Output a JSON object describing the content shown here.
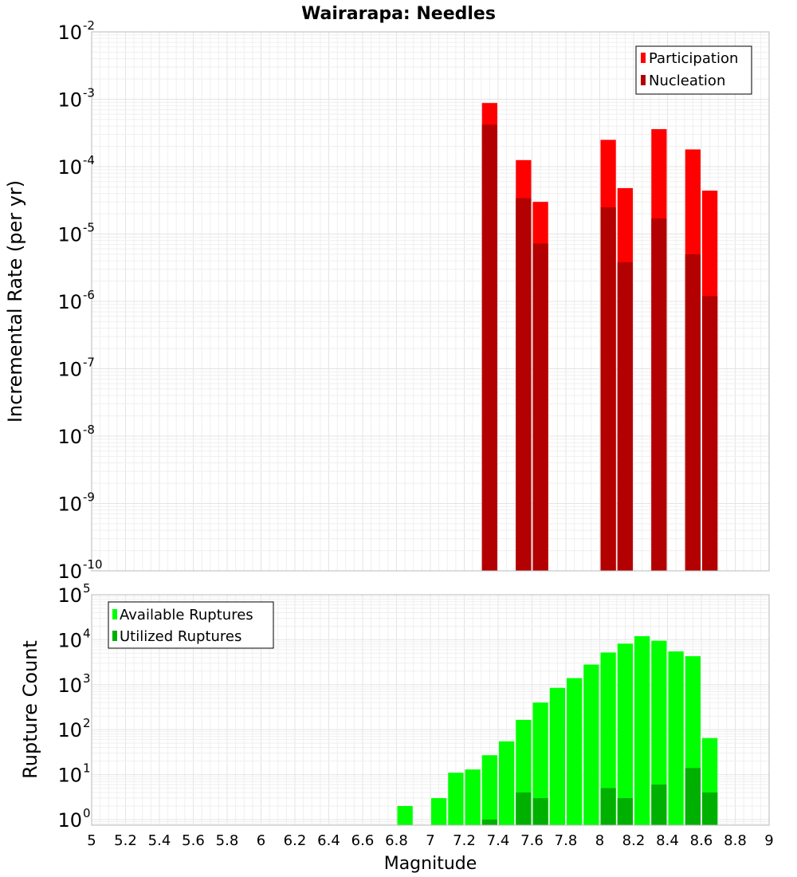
{
  "chart_data": [
    {
      "type": "bar",
      "title": "Wairarapa: Needles",
      "ylabel": "Incremental Rate (per yr)",
      "xlabel": "",
      "y_scale": "log",
      "ylim": [
        1e-10,
        0.01
      ],
      "xlim": [
        5,
        9
      ],
      "bar_width": 0.1,
      "grid": true,
      "legend_placement": "top-right",
      "series": [
        {
          "name": "Participation",
          "color": "#ff0000",
          "x": [
            7.35,
            7.55,
            7.65,
            8.05,
            8.15,
            8.35,
            8.55,
            8.65
          ],
          "values": [
            0.00088,
            0.000125,
            3e-05,
            0.00025,
            4.8e-05,
            0.00036,
            0.00018,
            4.4e-05
          ]
        },
        {
          "name": "Nucleation",
          "color": "#b30000",
          "x": [
            7.35,
            7.55,
            7.65,
            8.05,
            8.15,
            8.35,
            8.55,
            8.65
          ],
          "values": [
            0.00042,
            3.4e-05,
            7.2e-06,
            2.5e-05,
            3.8e-06,
            1.7e-05,
            5e-06,
            1.2e-06
          ]
        }
      ]
    },
    {
      "type": "bar",
      "title": "",
      "ylabel": "Rupture Count",
      "xlabel": "Magnitude",
      "y_scale": "log",
      "ylim": [
        0.75,
        100000
      ],
      "xlim": [
        5,
        9
      ],
      "bar_width": 0.1,
      "grid": true,
      "legend_placement": "top-left",
      "x_ticks": [
        "5",
        "5.2",
        "5.4",
        "5.6",
        "5.8",
        "6",
        "6.2",
        "6.4",
        "6.6",
        "6.8",
        "7",
        "7.2",
        "7.4",
        "7.6",
        "7.8",
        "8",
        "8.2",
        "8.4",
        "8.6",
        "8.8",
        "9"
      ],
      "series": [
        {
          "name": "Available Ruptures",
          "color": "#00ff00",
          "x": [
            6.85,
            7.05,
            7.15,
            7.25,
            7.35,
            7.45,
            7.55,
            7.65,
            7.75,
            7.85,
            7.95,
            8.05,
            8.15,
            8.25,
            8.35,
            8.45,
            8.55,
            8.65
          ],
          "values": [
            2,
            3,
            11,
            13,
            27,
            55,
            165,
            400,
            850,
            1400,
            2800,
            5200,
            8200,
            12000,
            9500,
            5500,
            4300,
            65
          ]
        },
        {
          "name": "Utilized Ruptures",
          "color": "#00b000",
          "x": [
            7.35,
            7.55,
            7.65,
            8.05,
            8.15,
            8.35,
            8.55,
            8.65
          ],
          "values": [
            1,
            4,
            3,
            5,
            3,
            6,
            14,
            4
          ]
        }
      ]
    }
  ]
}
